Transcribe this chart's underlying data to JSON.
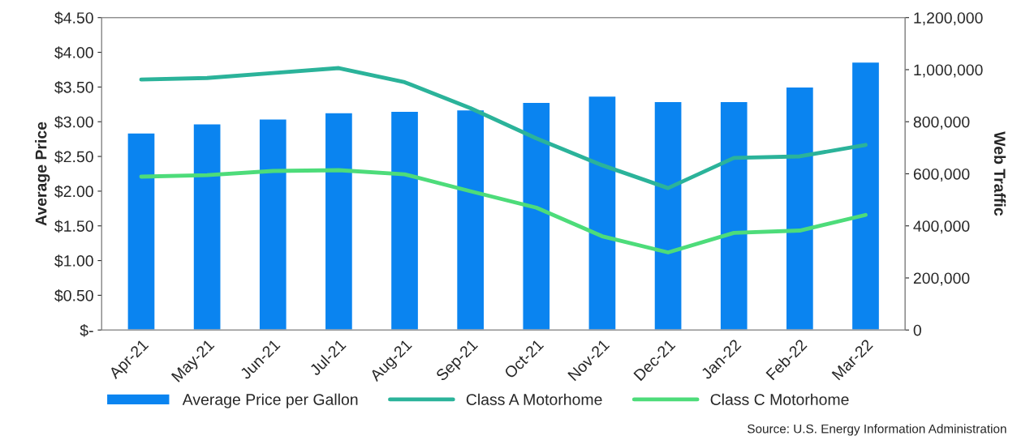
{
  "chart_data": {
    "type": "bar",
    "ylabel": "Average Price",
    "y2label": "Web Traffic",
    "categories": [
      "Apr-21",
      "May-21",
      "Jun-21",
      "Jul-21",
      "Aug-21",
      "Sep-21",
      "Oct-21",
      "Nov-21",
      "Dec-21",
      "Jan-22",
      "Feb-22",
      "Mar-22"
    ],
    "series": [
      {
        "name": "Average Price per Gallon",
        "color": "#0a84f0",
        "values": [
          2.84,
          2.97,
          3.04,
          3.13,
          3.15,
          3.17,
          3.28,
          3.37,
          3.29,
          3.29,
          3.5,
          3.86
        ]
      },
      {
        "name": "Class A Motorhome",
        "type": "line",
        "axis": "y2",
        "color": "#2bb39a",
        "values": [
          962000,
          968000,
          987000,
          1006000,
          952000,
          852000,
          736000,
          633000,
          545000,
          661000,
          667000,
          711000
        ]
      },
      {
        "name": "Class C Motorhome",
        "type": "line",
        "axis": "y2",
        "color": "#4ddc7a",
        "values": [
          589000,
          595000,
          611000,
          614000,
          598000,
          533000,
          470000,
          360000,
          298000,
          373000,
          382000,
          442000
        ]
      }
    ],
    "ylim": [
      0,
      4.5
    ],
    "yticks": [
      {
        "value": 0,
        "label": "$-"
      },
      {
        "value": 0.5,
        "label": "$0.50"
      },
      {
        "value": 1,
        "label": "$1.00"
      },
      {
        "value": 1.5,
        "label": "$1.50"
      },
      {
        "value": 2,
        "label": "$2.00"
      },
      {
        "value": 2.5,
        "label": "$2.50"
      },
      {
        "value": 3,
        "label": "$3.00"
      },
      {
        "value": 3.5,
        "label": "$3.50"
      },
      {
        "value": 4,
        "label": "$4.00"
      },
      {
        "value": 4.5,
        "label": "$4.50"
      }
    ],
    "y2lim": [
      0,
      1200000
    ],
    "y2ticks": [
      0,
      {
        "value": 200000,
        "label": "200,000"
      },
      {
        "value": 400000,
        "label": "400,000"
      },
      {
        "value": 600000,
        "label": "600,000"
      },
      {
        "value": 800000,
        "label": "800,000"
      },
      {
        "value": 1000000,
        "label": "1,000,000"
      },
      {
        "value": 1200000,
        "label": "1,200,000"
      }
    ],
    "grid": false,
    "legend": "bottom",
    "marker": "none",
    "line_style": "solid",
    "annotations": [
      "Source: U.S. Energy Information Administration"
    ]
  }
}
